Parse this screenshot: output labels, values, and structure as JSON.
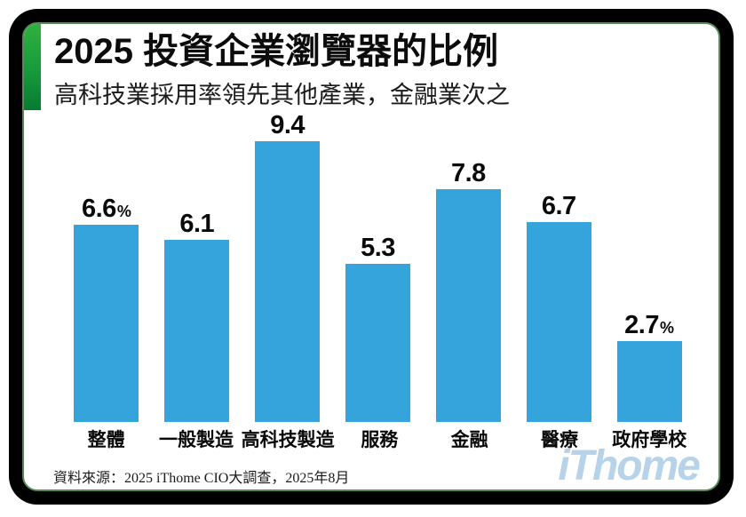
{
  "header": {
    "title": "2025 投資企業瀏覽器的比例",
    "subtitle": "高科技業採用率領先其他產業，金融業次之"
  },
  "footer": {
    "source": "資料來源：2025 iThome CIO大調查，2025年8月",
    "logo_text": "iThome"
  },
  "colors": {
    "bar": "#35a3dc",
    "accent_green_top": "#2fb13f",
    "accent_green_bottom": "#077b33",
    "inner_border_green": "#558b55",
    "frame_black": "#000000",
    "logo_blue": "#b7d3ea",
    "text_black": "#0a0a0a"
  },
  "chart_data": {
    "type": "bar",
    "title": "2025 投資企業瀏覽器的比例",
    "subtitle": "高科技業採用率領先其他產業，金融業次之",
    "categories": [
      "整體",
      "一般製造",
      "高科技製造",
      "服務",
      "金融",
      "醫療",
      "政府學校"
    ],
    "values": [
      6.6,
      6.1,
      9.4,
      5.3,
      7.8,
      6.7,
      2.7
    ],
    "value_labels": [
      "6.6",
      "6.1",
      "9.4",
      "5.3",
      "7.8",
      "6.7",
      "2.7"
    ],
    "value_suffixes": [
      "%",
      "",
      "",
      "",
      "",
      "",
      "%"
    ],
    "unit": "%",
    "xlabel": "",
    "ylabel": "",
    "ylim": [
      0,
      10
    ],
    "grid": false,
    "legend": false,
    "bar_color": "#35a3dc"
  }
}
